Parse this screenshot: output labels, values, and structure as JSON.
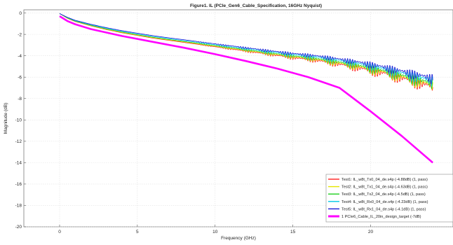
{
  "chart_data": {
    "type": "line",
    "title": "Figure1. IL (PCIe_Gen6_Cable_Specification, 16GHz Nyquist)",
    "xlabel": "Frequency (GHz)",
    "ylabel": "Magnitude (dB)",
    "xlim": [
      -2.3,
      25.3
    ],
    "ylim": [
      -20,
      0.3
    ],
    "x_ticks": [
      0,
      5,
      10,
      15,
      20
    ],
    "x_tick_labels": [
      "0",
      "5",
      "10",
      "15",
      "20"
    ],
    "y_ticks": [
      0,
      -2,
      -4,
      -6,
      -8,
      -10,
      -12,
      -14,
      -16,
      -18,
      -20
    ],
    "y_tick_labels": [
      "0",
      "-2",
      "-4",
      "-6",
      "-8",
      "-10",
      "-12",
      "-14",
      "-16",
      "-18",
      "-20"
    ],
    "grid": true,
    "legend_position": "bottom-right",
    "series": [
      {
        "name": "Test1: IL_w8t_Tx0_04_de.s4p (-4.88dB) (1, pass)",
        "color": "#ff2020",
        "x": [
          0,
          0.5,
          1,
          2,
          3,
          4,
          5,
          6,
          7,
          8,
          9,
          10,
          11,
          12,
          13,
          14,
          15,
          16,
          17,
          18,
          19,
          20,
          21,
          22,
          23,
          24
        ],
        "values": [
          -0.05,
          -0.5,
          -0.8,
          -1.2,
          -1.55,
          -1.85,
          -2.1,
          -2.35,
          -2.55,
          -2.75,
          -2.95,
          -3.15,
          -3.35,
          -3.55,
          -3.75,
          -3.95,
          -4.15,
          -4.3,
          -4.5,
          -4.75,
          -5.0,
          -5.3,
          -5.6,
          -6.0,
          -6.4,
          -6.8
        ],
        "ripple": [
          0,
          0,
          0,
          0,
          0,
          0,
          0,
          0,
          0,
          0,
          0.05,
          0.1,
          0.15,
          0.2,
          0.25,
          0.3,
          0.35,
          0.4,
          0.5,
          0.6,
          0.75,
          0.9,
          1.0,
          1.1,
          1.2,
          1.3
        ]
      },
      {
        "name": "Test2: IL_w8t_Tx1_04_de.s4p (-4.63dB) (1, pass)",
        "color": "#e6e600",
        "x": [
          0,
          0.5,
          1,
          2,
          3,
          4,
          5,
          6,
          7,
          8,
          9,
          10,
          11,
          12,
          13,
          14,
          15,
          16,
          17,
          18,
          19,
          20,
          21,
          22,
          23,
          24
        ],
        "values": [
          -0.05,
          -0.48,
          -0.78,
          -1.18,
          -1.52,
          -1.82,
          -2.07,
          -2.31,
          -2.51,
          -2.7,
          -2.9,
          -3.1,
          -3.3,
          -3.49,
          -3.69,
          -3.88,
          -4.07,
          -4.22,
          -4.42,
          -4.66,
          -4.9,
          -5.2,
          -5.5,
          -5.9,
          -6.28,
          -6.65
        ],
        "ripple": [
          0,
          0,
          0,
          0,
          0,
          0,
          0,
          0,
          0,
          0,
          0.05,
          0.1,
          0.15,
          0.2,
          0.25,
          0.3,
          0.35,
          0.4,
          0.5,
          0.6,
          0.7,
          0.85,
          0.95,
          1.05,
          1.15,
          1.25
        ]
      },
      {
        "name": "Test3: IL_w8t_Tx2_04_de.s4p (-4.5dB) (1, pass)",
        "color": "#1fd01f",
        "x": [
          0,
          0.5,
          1,
          2,
          3,
          4,
          5,
          6,
          7,
          8,
          9,
          10,
          11,
          12,
          13,
          14,
          15,
          16,
          17,
          18,
          19,
          20,
          21,
          22,
          23,
          24
        ],
        "values": [
          -0.05,
          -0.46,
          -0.76,
          -1.15,
          -1.49,
          -1.78,
          -2.03,
          -2.27,
          -2.47,
          -2.66,
          -2.85,
          -3.05,
          -3.24,
          -3.43,
          -3.62,
          -3.81,
          -4.0,
          -4.15,
          -4.34,
          -4.57,
          -4.81,
          -5.1,
          -5.4,
          -5.78,
          -6.15,
          -6.5
        ],
        "ripple": [
          0,
          0,
          0,
          0,
          0,
          0,
          0,
          0,
          0,
          0,
          0.05,
          0.1,
          0.15,
          0.2,
          0.25,
          0.3,
          0.35,
          0.4,
          0.45,
          0.55,
          0.65,
          0.8,
          0.9,
          1.0,
          1.1,
          1.2
        ]
      },
      {
        "name": "Test4: IL_w8t_Rx0_04_de.s4p (-4.23dB) (1, pass)",
        "color": "#00c8e6",
        "x": [
          0,
          0.5,
          1,
          2,
          3,
          4,
          5,
          6,
          7,
          8,
          9,
          10,
          11,
          12,
          13,
          14,
          15,
          16,
          17,
          18,
          19,
          20,
          21,
          22,
          23,
          24
        ],
        "values": [
          -0.05,
          -0.43,
          -0.72,
          -1.1,
          -1.43,
          -1.71,
          -1.96,
          -2.19,
          -2.39,
          -2.58,
          -2.77,
          -2.96,
          -3.15,
          -3.33,
          -3.51,
          -3.69,
          -3.86,
          -4.0,
          -4.18,
          -4.4,
          -4.63,
          -4.9,
          -5.2,
          -5.55,
          -5.9,
          -6.25
        ],
        "ripple": [
          0,
          0,
          0,
          0,
          0,
          0,
          0,
          0,
          0,
          0,
          0.05,
          0.1,
          0.15,
          0.2,
          0.25,
          0.3,
          0.35,
          0.4,
          0.45,
          0.5,
          0.6,
          0.75,
          0.85,
          0.95,
          1.05,
          1.15
        ]
      },
      {
        "name": "Test5: IL_w8t_Rx1_04_de.s4p (-4.1dB) (1, pass)",
        "color": "#1a1ad6",
        "x": [
          0,
          0.5,
          1,
          2,
          3,
          4,
          5,
          6,
          7,
          8,
          9,
          10,
          11,
          12,
          13,
          14,
          15,
          16,
          17,
          18,
          19,
          20,
          21,
          22,
          23,
          24
        ],
        "values": [
          -0.05,
          -0.4,
          -0.68,
          -1.05,
          -1.37,
          -1.65,
          -1.89,
          -2.12,
          -2.32,
          -2.5,
          -2.69,
          -2.88,
          -3.06,
          -3.24,
          -3.42,
          -3.6,
          -3.77,
          -3.9,
          -4.07,
          -4.28,
          -4.5,
          -4.75,
          -5.05,
          -5.38,
          -5.7,
          -6.05
        ],
        "ripple": [
          0,
          0,
          0,
          0,
          0,
          0,
          0,
          0,
          0,
          0,
          0.05,
          0.1,
          0.15,
          0.2,
          0.25,
          0.3,
          0.35,
          0.35,
          0.4,
          0.45,
          0.55,
          0.7,
          0.8,
          0.9,
          1.0,
          1.1
        ]
      },
      {
        "name": "1 PCIe6_Cable_IL_20in_design_target (-7dB)",
        "color": "#ff00ff",
        "x": [
          0,
          0.5,
          1,
          2,
          4,
          6,
          8,
          10,
          12,
          14,
          16,
          18,
          20,
          22,
          24
        ],
        "values": [
          -0.3,
          -0.75,
          -1.05,
          -1.5,
          -2.15,
          -2.7,
          -3.25,
          -3.85,
          -4.5,
          -5.2,
          -6.0,
          -7.0,
          -9.2,
          -11.5,
          -14.0
        ]
      }
    ]
  }
}
